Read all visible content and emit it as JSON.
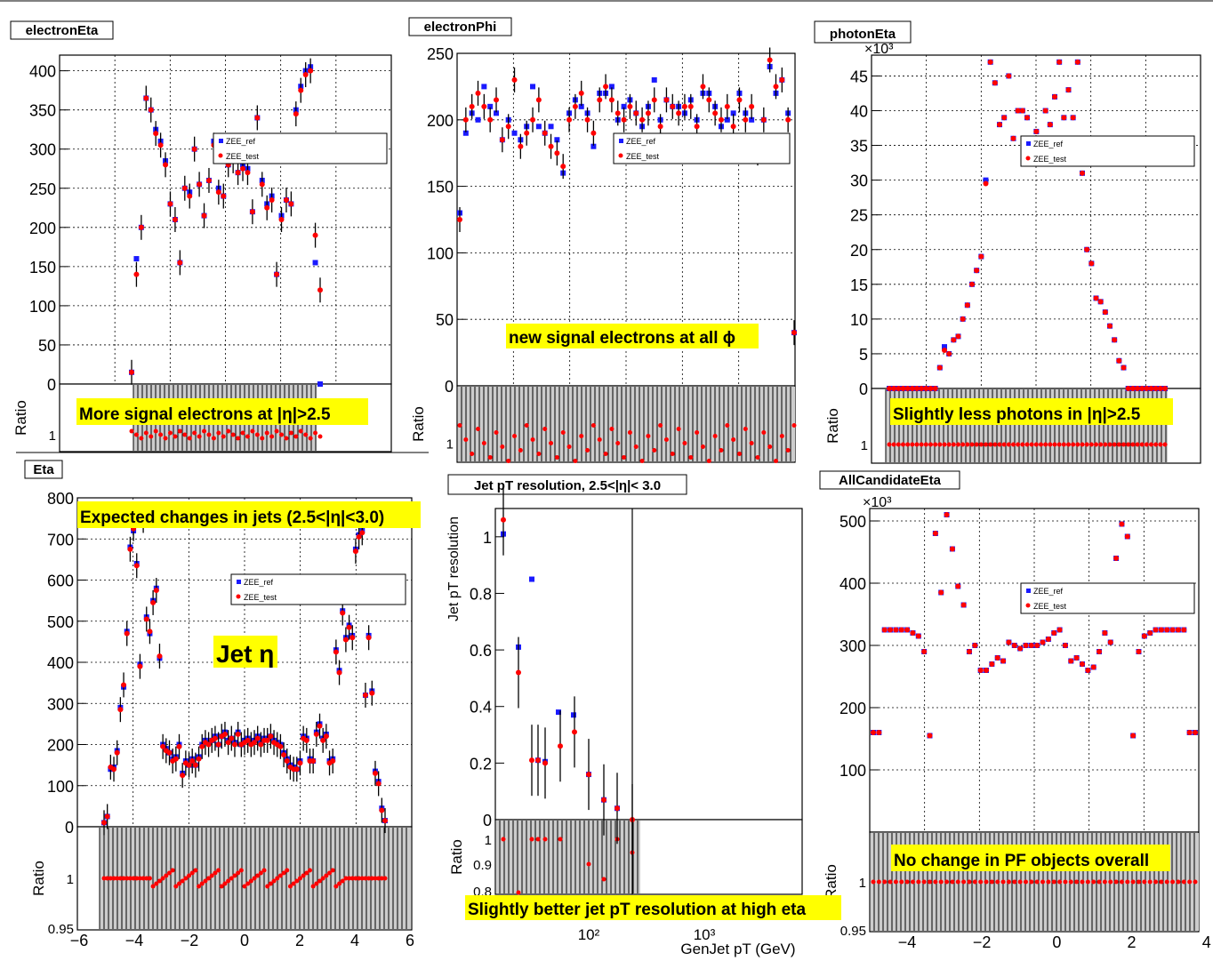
{
  "slide": {
    "annotations": {
      "electronEta": "More signal electrons at |η|>2.5",
      "electronPhi": "new signal electrons at all ϕ",
      "photonEta": "Slightly less photons in |η|>2.5",
      "jetEta_top": "Expected changes in jets (2.5<|η|<3.0)",
      "jetEta_mid": "Jet η",
      "jetRes": "Slightly better jet pT resolution at high eta",
      "allCand": "No change in PF objects overall"
    },
    "legend": {
      "ref": "ZEE_ref",
      "test": "ZEE_test"
    },
    "colors": {
      "ref": "#1a1aff",
      "test": "#ff0000",
      "highlight": "#ffff00",
      "band": "#cccccc"
    }
  },
  "chart_data": [
    {
      "id": "electronEta",
      "type": "scatter",
      "title": "electronEta",
      "ylim": [
        0,
        420
      ],
      "yticks": [
        "0",
        "50",
        "100",
        "150",
        "200",
        "250",
        "300",
        "350",
        "400"
      ],
      "ratio_label": "Ratio",
      "ratio_ticks": [
        "1"
      ],
      "series": [
        {
          "name": "ZEE_ref",
          "values": [
            15,
            160,
            200,
            365,
            350,
            325,
            310,
            285,
            230,
            210,
            155,
            250,
            245,
            300,
            255,
            215,
            260,
            310,
            250,
            240,
            280,
            290,
            270,
            280,
            275,
            220,
            340,
            260,
            230,
            240,
            140,
            215,
            235,
            230,
            350,
            380,
            400,
            405,
            155,
            0
          ]
        },
        {
          "name": "ZEE_test",
          "values": [
            15,
            140,
            200,
            365,
            350,
            320,
            305,
            280,
            230,
            210,
            155,
            250,
            240,
            300,
            255,
            215,
            260,
            305,
            245,
            240,
            280,
            285,
            270,
            275,
            270,
            220,
            340,
            255,
            225,
            235,
            140,
            210,
            235,
            230,
            345,
            375,
            395,
            400,
            190,
            120
          ]
        }
      ]
    },
    {
      "id": "electronPhi",
      "type": "scatter",
      "title": "electronPhi",
      "ylim": [
        0,
        250
      ],
      "yticks": [
        "0",
        "50",
        "100",
        "150",
        "200",
        "250"
      ],
      "ratio_label": "Ratio",
      "ratio_ticks": [
        "1"
      ],
      "series": [
        {
          "name": "ZEE_ref",
          "values": [
            130,
            190,
            205,
            200,
            225,
            210,
            205,
            185,
            200,
            190,
            185,
            195,
            225,
            195,
            190,
            195,
            185,
            160,
            205,
            215,
            210,
            205,
            180,
            220,
            220,
            225,
            200,
            210,
            215,
            205,
            195,
            210,
            230,
            200,
            215,
            210,
            210,
            205,
            215,
            200,
            220,
            220,
            210,
            195,
            200,
            205,
            220,
            205,
            200,
            170,
            200,
            240,
            220,
            230,
            205,
            40
          ]
        },
        {
          "name": "ZEE_test",
          "values": [
            125,
            200,
            210,
            220,
            210,
            200,
            215,
            185,
            195,
            230,
            180,
            190,
            200,
            215,
            190,
            180,
            175,
            165,
            200,
            210,
            220,
            200,
            190,
            215,
            225,
            215,
            205,
            200,
            210,
            205,
            200,
            205,
            215,
            195,
            215,
            210,
            205,
            210,
            210,
            195,
            225,
            215,
            205,
            200,
            210,
            195,
            215,
            200,
            210,
            175,
            200,
            245,
            225,
            230,
            200,
            40
          ]
        }
      ]
    },
    {
      "id": "photonEta",
      "type": "scatter",
      "title": "photonEta",
      "yscale_label": "×10³",
      "ylim": [
        0,
        48
      ],
      "yticks": [
        "0",
        "5",
        "10",
        "15",
        "20",
        "25",
        "30",
        "35",
        "40",
        "45"
      ],
      "ratio_label": "Ratio",
      "ratio_ticks": [
        "1"
      ],
      "series": [
        {
          "name": "ZEE_ref",
          "values": [
            0,
            0,
            0,
            0,
            0,
            0,
            0,
            0,
            0,
            0,
            0,
            3,
            6,
            5,
            7,
            7.5,
            10,
            12,
            15,
            17,
            19,
            30,
            47,
            44,
            38,
            39,
            45,
            36,
            40,
            40,
            39,
            35,
            37,
            36,
            40,
            38,
            42,
            47,
            39,
            43,
            39,
            47,
            31,
            20,
            18,
            13,
            12.5,
            11,
            9,
            7,
            4,
            3,
            0,
            0,
            0,
            0,
            0,
            0,
            0,
            0,
            0
          ]
        },
        {
          "name": "ZEE_test",
          "values": [
            0,
            0,
            0,
            0,
            0,
            0,
            0,
            0,
            0,
            0,
            0,
            3,
            5.5,
            5,
            7,
            7.5,
            10,
            12,
            15,
            17,
            19,
            29.5,
            47,
            44,
            38,
            39,
            45,
            36,
            40,
            40,
            39,
            35,
            37,
            36,
            40,
            38,
            42,
            47,
            39,
            43,
            39,
            47,
            31,
            20,
            18,
            13,
            12.5,
            11,
            9,
            7,
            4,
            3,
            0,
            0,
            0,
            0,
            0,
            0,
            0,
            0,
            0
          ]
        }
      ]
    },
    {
      "id": "jetEta",
      "type": "scatter",
      "title": "Eta",
      "xlim": [
        -6,
        6
      ],
      "xticks": [
        "−6",
        "−4",
        "−2",
        "0",
        "2",
        "4",
        "6"
      ],
      "ylim": [
        0,
        800
      ],
      "yticks": [
        "0",
        "100",
        "200",
        "300",
        "400",
        "500",
        "600",
        "700",
        "800"
      ],
      "ratio_label": "Ratio",
      "ratio_ticks": [
        "0.95",
        "1"
      ],
      "series": [
        {
          "name": "ZEE_ref",
          "values": [
            10,
            25,
            140,
            145,
            185,
            290,
            340,
            475,
            680,
            720,
            640,
            395,
            740,
            510,
            470,
            550,
            580,
            410,
            200,
            190,
            180,
            165,
            170,
            200,
            130,
            160,
            150,
            165,
            150,
            170,
            200,
            210,
            205,
            210,
            220,
            200,
            220,
            230,
            210,
            215,
            205,
            230,
            200,
            210,
            215,
            205,
            210,
            220,
            205,
            215,
            215,
            220,
            210,
            205,
            200,
            180,
            165,
            150,
            145,
            140,
            160,
            220,
            215,
            165,
            160,
            230,
            250,
            215,
            225,
            160,
            165,
            430,
            380,
            525,
            460,
            490,
            465,
            675,
            710,
            720,
            320,
            465,
            330,
            135,
            110,
            45,
            15
          ]
        },
        {
          "name": "ZEE_test",
          "values": [
            10,
            25,
            145,
            140,
            180,
            285,
            345,
            470,
            675,
            725,
            635,
            390,
            745,
            505,
            475,
            545,
            575,
            415,
            195,
            185,
            180,
            160,
            165,
            195,
            125,
            155,
            150,
            160,
            150,
            165,
            195,
            205,
            200,
            210,
            215,
            200,
            220,
            225,
            205,
            215,
            200,
            225,
            200,
            205,
            210,
            200,
            205,
            215,
            200,
            210,
            210,
            220,
            205,
            200,
            195,
            175,
            160,
            145,
            140,
            140,
            155,
            215,
            210,
            160,
            160,
            225,
            245,
            210,
            220,
            155,
            160,
            425,
            375,
            520,
            455,
            485,
            460,
            670,
            705,
            715,
            320,
            460,
            325,
            130,
            105,
            40,
            15
          ]
        }
      ]
    },
    {
      "id": "jetRes",
      "type": "scatter",
      "title": "Jet pT resolution,  2.5<|η|< 3.0",
      "xlabel": "GenJet pT (GeV)",
      "ylabel": "Jet pT resolution",
      "xticks": [
        "10²",
        "10³"
      ],
      "ylim": [
        0,
        1.1
      ],
      "yticks": [
        "0",
        "0.2",
        "0.4",
        "0.6",
        "0.8",
        "1"
      ],
      "ratio_label": "Ratio",
      "ratio_ticks": [
        "0.8",
        "0.9",
        "1"
      ],
      "series": [
        {
          "name": "ZEE_ref",
          "values": [
            1.01,
            0.61,
            0.85,
            0.21,
            0.205,
            0.38,
            0.37,
            0.16,
            0.07,
            0.04
          ]
        },
        {
          "name": "ZEE_test",
          "values": [
            1.06,
            0.52,
            0.21,
            0.21,
            0.2,
            0.26,
            0.31,
            0.16,
            0.07,
            0.04,
            0.0
          ]
        }
      ]
    },
    {
      "id": "allCandidateEta",
      "type": "scatter",
      "title": "AllCandidateEta",
      "yscale_label": "×10³",
      "xlim": [
        -5,
        5
      ],
      "xticks": [
        "−4",
        "−2",
        "0",
        "2",
        "4"
      ],
      "ylim": [
        0,
        520
      ],
      "yticks": [
        "100",
        "200",
        "300",
        "400",
        "500"
      ],
      "ratio_label": "Ratio",
      "ratio_ticks": [
        "0.95",
        "1"
      ],
      "series": [
        {
          "name": "ZEE_ref",
          "values": [
            160,
            160,
            325,
            325,
            325,
            325,
            325,
            320,
            315,
            290,
            155,
            480,
            385,
            510,
            455,
            395,
            365,
            290,
            300,
            260,
            260,
            270,
            280,
            275,
            305,
            300,
            295,
            300,
            300,
            300,
            305,
            310,
            320,
            325,
            300,
            275,
            280,
            270,
            260,
            265,
            290,
            320,
            305,
            440,
            495,
            475,
            155,
            290,
            315,
            320,
            325,
            325,
            325,
            325,
            325,
            325,
            160,
            160
          ]
        },
        {
          "name": "ZEE_test",
          "values": [
            160,
            160,
            325,
            325,
            325,
            325,
            325,
            320,
            315,
            290,
            155,
            480,
            385,
            510,
            455,
            395,
            365,
            290,
            300,
            260,
            260,
            270,
            280,
            275,
            305,
            300,
            295,
            300,
            300,
            300,
            305,
            310,
            320,
            325,
            300,
            275,
            280,
            270,
            260,
            265,
            290,
            320,
            305,
            440,
            495,
            475,
            155,
            290,
            315,
            320,
            325,
            325,
            325,
            325,
            325,
            325,
            160,
            160
          ]
        }
      ]
    }
  ]
}
